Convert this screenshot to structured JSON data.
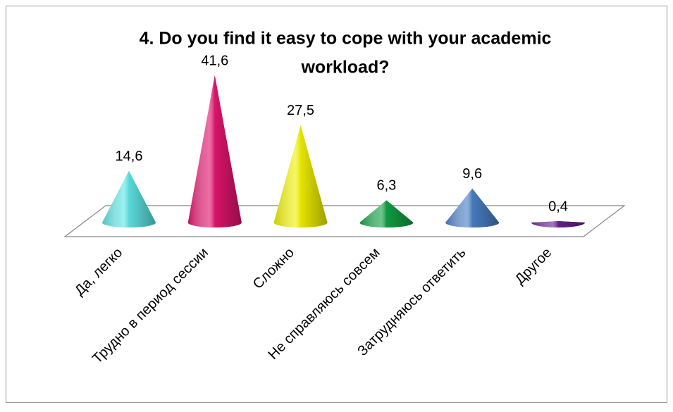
{
  "chart_data": {
    "type": "cone",
    "title": [
      "4. Do you find it easy to cope with your academic",
      "workload?"
    ],
    "categories": [
      "Да, легко",
      "Трудно в период сессии",
      "Сложно",
      "Не справляюсь совсем",
      "Затрудняюсь ответить",
      "Другое"
    ],
    "values": [
      14.6,
      41.6,
      27.5,
      6.3,
      9.6,
      0.4
    ],
    "value_labels": [
      "14,6",
      "41,6",
      "27,5",
      "6,3",
      "9,6",
      "0,4"
    ],
    "colors": [
      "#5ee6e6",
      "#e3156e",
      "#f2f200",
      "#12a245",
      "#4a80c8",
      "#6b2090"
    ]
  }
}
